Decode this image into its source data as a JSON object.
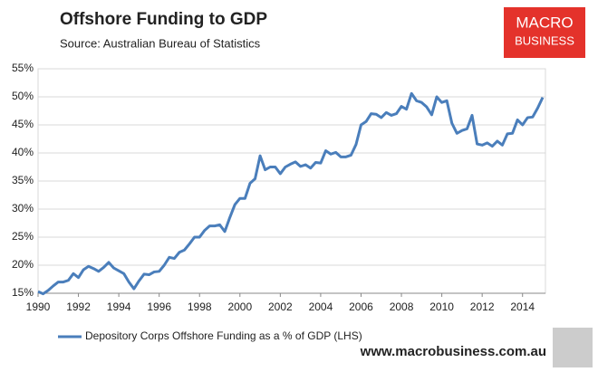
{
  "chart_data": {
    "type": "line",
    "title": "Offshore Funding to GDP",
    "subtitle": "Source:  Australian Bureau of Statistics",
    "logo": [
      "MACRO",
      "BUSINESS"
    ],
    "website": "www.macrobusiness.com.au",
    "x": [
      1990,
      1990.25,
      1990.5,
      1990.75,
      1991,
      1991.25,
      1991.5,
      1991.75,
      1992,
      1992.25,
      1992.5,
      1992.75,
      1993,
      1993.25,
      1993.5,
      1993.75,
      1994,
      1994.25,
      1994.5,
      1994.75,
      1995,
      1995.25,
      1995.5,
      1995.75,
      1996,
      1996.25,
      1996.5,
      1996.75,
      1997,
      1997.25,
      1997.5,
      1997.75,
      1998,
      1998.25,
      1998.5,
      1998.75,
      1999,
      1999.25,
      1999.5,
      1999.75,
      2000,
      2000.25,
      2000.5,
      2000.75,
      2001,
      2001.25,
      2001.5,
      2001.75,
      2002,
      2002.25,
      2002.5,
      2002.75,
      2003,
      2003.25,
      2003.5,
      2003.75,
      2004,
      2004.25,
      2004.5,
      2004.75,
      2005,
      2005.25,
      2005.5,
      2005.75,
      2006,
      2006.25,
      2006.5,
      2006.75,
      2007,
      2007.25,
      2007.5,
      2007.75,
      2008,
      2008.25,
      2008.5,
      2008.75,
      2009,
      2009.25,
      2009.5,
      2009.75,
      2010,
      2010.25,
      2010.5,
      2010.75,
      2011,
      2011.25,
      2011.5,
      2011.75,
      2012,
      2012.25,
      2012.5,
      2012.75,
      2013,
      2013.25,
      2013.5,
      2013.75,
      2014,
      2014.25,
      2014.5,
      2014.75,
      2015
    ],
    "series": [
      {
        "name": "Depository Corps Offshore Funding as a % of GDP (LHS)",
        "color": "#4a7ebb",
        "values": [
          15.3,
          14.9,
          15.5,
          16.3,
          17.0,
          17.0,
          17.3,
          18.5,
          17.8,
          19.2,
          19.8,
          19.4,
          18.9,
          19.6,
          20.5,
          19.5,
          19.0,
          18.5,
          17.0,
          15.8,
          17.2,
          18.4,
          18.3,
          18.8,
          18.9,
          20.0,
          21.4,
          21.2,
          22.3,
          22.7,
          23.8,
          25.0,
          25.0,
          26.2,
          27.0,
          27.0,
          27.2,
          26.0,
          28.5,
          30.8,
          31.9,
          31.9,
          34.6,
          35.4,
          39.5,
          37.0,
          37.5,
          37.5,
          36.3,
          37.5,
          38.0,
          38.4,
          37.6,
          37.9,
          37.3,
          38.3,
          38.2,
          40.4,
          39.8,
          40.1,
          39.3,
          39.3,
          39.6,
          41.5,
          45.0,
          45.6,
          47.0,
          46.9,
          46.3,
          47.2,
          46.7,
          47.0,
          48.3,
          47.8,
          50.6,
          49.3,
          49.0,
          48.2,
          46.8,
          50.0,
          49.0,
          49.3,
          45.3,
          43.5,
          44.0,
          44.3,
          46.7,
          41.6,
          41.4,
          41.8,
          41.2,
          42.1,
          41.4,
          43.4,
          43.5,
          45.9,
          45.0,
          46.3,
          46.4,
          48.0,
          49.9
        ]
      }
    ],
    "xlim": [
      1990,
      2015
    ],
    "xticks": [
      1990,
      1992,
      1994,
      1996,
      1998,
      2000,
      2002,
      2004,
      2006,
      2008,
      2010,
      2012,
      2014
    ],
    "ylim": [
      15,
      55
    ],
    "yticks": [
      {
        "value": 15,
        "label": "15%"
      },
      {
        "value": 20,
        "label": "20%"
      },
      {
        "value": 25,
        "label": "25%"
      },
      {
        "value": 30,
        "label": "30%"
      },
      {
        "value": 35,
        "label": "35%"
      },
      {
        "value": 40,
        "label": "40%"
      },
      {
        "value": 45,
        "label": "45%"
      },
      {
        "value": 50,
        "label": "50%"
      },
      {
        "value": 55,
        "label": "55%"
      }
    ],
    "grid": true,
    "legend": "bottom"
  }
}
